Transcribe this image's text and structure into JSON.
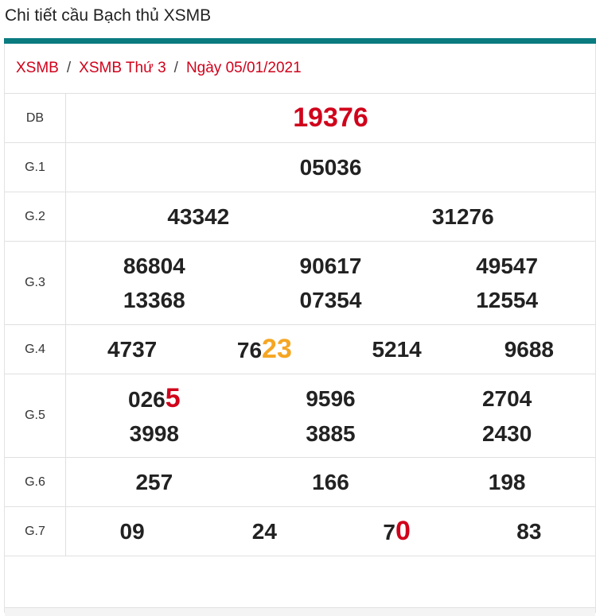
{
  "title": "Chi tiết cầu Bạch thủ XSMB",
  "colors": {
    "accent_bar": "#0a7c80",
    "red": "#d0021b",
    "orange": "#f5a623"
  },
  "breadcrumb": [
    "XSMB",
    "XSMB Thứ 3",
    "Ngày 05/01/2021"
  ],
  "breadcrumb_separator": "/",
  "prizes": [
    {
      "label": "DB",
      "cols": 1,
      "special": true,
      "numbers": [
        {
          "text": "19376"
        }
      ]
    },
    {
      "label": "G.1",
      "cols": 1,
      "numbers": [
        {
          "text": "05036"
        }
      ]
    },
    {
      "label": "G.2",
      "cols": 2,
      "numbers": [
        {
          "text": "43342"
        },
        {
          "text": "31276"
        }
      ]
    },
    {
      "label": "G.3",
      "cols": 3,
      "numbers": [
        {
          "text": "86804"
        },
        {
          "text": "90617"
        },
        {
          "text": "49547"
        },
        {
          "text": "13368"
        },
        {
          "text": "07354"
        },
        {
          "text": "12554"
        }
      ]
    },
    {
      "label": "G.4",
      "cols": 4,
      "numbers": [
        {
          "text": "4737"
        },
        {
          "text": "76",
          "hl": "23",
          "hl_color": "orange"
        },
        {
          "text": "5214"
        },
        {
          "text": "9688"
        }
      ]
    },
    {
      "label": "G.5",
      "cols": 3,
      "numbers": [
        {
          "text": "026",
          "hl": "5",
          "hl_color": "red"
        },
        {
          "text": "9596"
        },
        {
          "text": "2704"
        },
        {
          "text": "3998"
        },
        {
          "text": "3885"
        },
        {
          "text": "2430"
        }
      ]
    },
    {
      "label": "G.6",
      "cols": 3,
      "numbers": [
        {
          "text": "257"
        },
        {
          "text": "166"
        },
        {
          "text": "198"
        }
      ]
    },
    {
      "label": "G.7",
      "cols": 4,
      "numbers": [
        {
          "text": "09"
        },
        {
          "text": "24"
        },
        {
          "text": "7",
          "hl": "0",
          "hl_color": "red"
        },
        {
          "text": "83"
        }
      ]
    }
  ]
}
